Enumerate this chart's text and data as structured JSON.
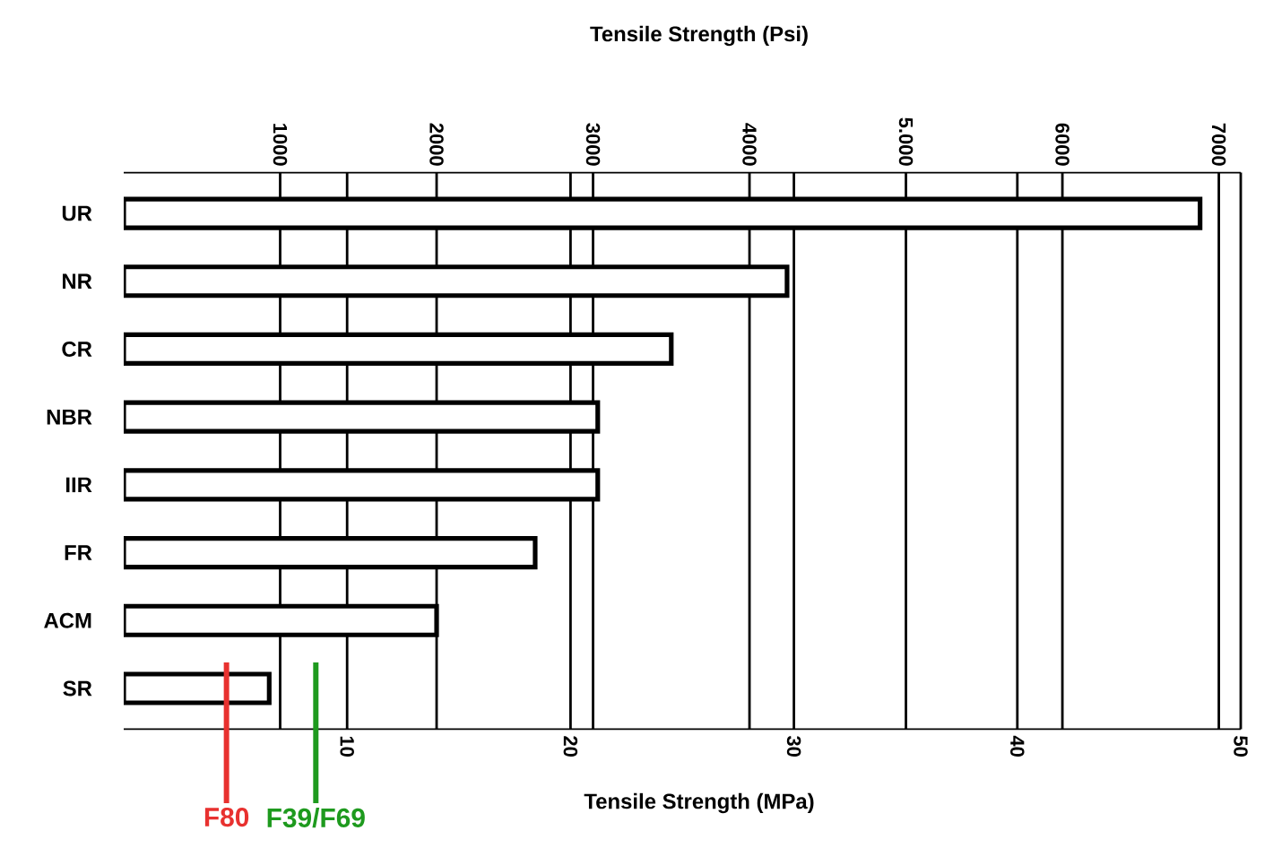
{
  "chart_data": {
    "type": "bar",
    "orientation": "horizontal",
    "x2label": "Tensile Strength (Psi)",
    "xlabel": "Tensile Strength (MPa)",
    "categories": [
      "UR",
      "NR",
      "CR",
      "NBR",
      "IIR",
      "FR",
      "ACM",
      "SR"
    ],
    "series": [
      {
        "color": "#ffffff",
        "axis": "x2",
        "values": [
          6880,
          4240,
          3500,
          3030,
          3030,
          2630,
          2000,
          930
        ]
      }
    ],
    "x2lim": [
      0,
      7140
    ],
    "x2ticks": [
      1000,
      2000,
      3000,
      4000,
      {
        "value": 5000,
        "label": "5.000"
      },
      6000,
      7000
    ],
    "xlim": [
      0,
      50
    ],
    "xticks": [
      10,
      20,
      30,
      40,
      50
    ],
    "grid": true,
    "ref_lines": [
      {
        "axis": "x",
        "value": 4.6,
        "label": "F80",
        "color": "#e8312f"
      },
      {
        "axis": "x",
        "value": 8.6,
        "label": "F39/F69",
        "color": "#1e9a1e"
      }
    ]
  }
}
